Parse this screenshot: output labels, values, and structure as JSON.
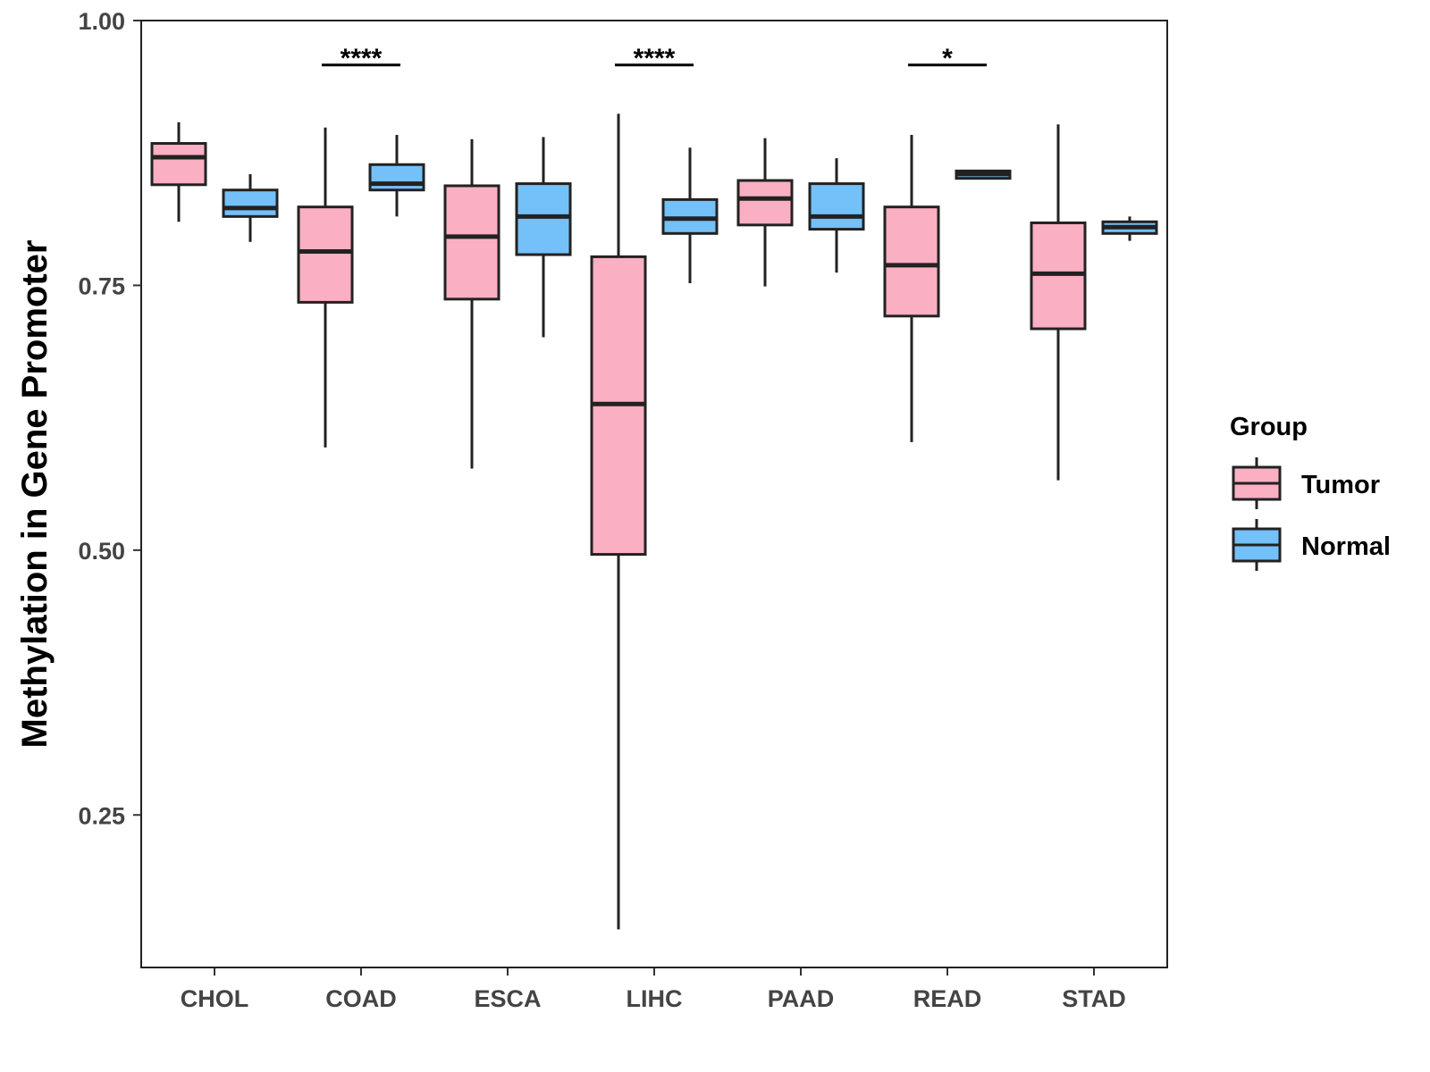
{
  "chart_data": {
    "type": "boxplot",
    "ylabel": "Methylation in Gene Promoter",
    "xlabel": "",
    "ylim": [
      0.106,
      1.0
    ],
    "yticks": [
      "0.25",
      "0.50",
      "0.75",
      "1.00"
    ],
    "categories": [
      "CHOL",
      "COAD",
      "ESCA",
      "LIHC",
      "PAAD",
      "READ",
      "STAD"
    ],
    "legend": {
      "title": "Group",
      "position": "right",
      "entries": [
        {
          "name": "Tumor",
          "color": "#FBAFC2"
        },
        {
          "name": "Normal",
          "color": "#74C0F9"
        }
      ]
    },
    "series": [
      {
        "name": "Tumor",
        "color": "#FBAFC2",
        "boxes": [
          {
            "whisker_low": 0.81,
            "q1": 0.845,
            "median": 0.871,
            "q3": 0.884,
            "whisker_high": 0.904
          },
          {
            "whisker_low": 0.597,
            "q1": 0.734,
            "median": 0.782,
            "q3": 0.824,
            "whisker_high": 0.899
          },
          {
            "whisker_low": 0.577,
            "q1": 0.737,
            "median": 0.796,
            "q3": 0.844,
            "whisker_high": 0.888
          },
          {
            "whisker_low": 0.142,
            "q1": 0.496,
            "median": 0.638,
            "q3": 0.777,
            "whisker_high": 0.912
          },
          {
            "whisker_low": 0.749,
            "q1": 0.807,
            "median": 0.832,
            "q3": 0.849,
            "whisker_high": 0.889
          },
          {
            "whisker_low": 0.602,
            "q1": 0.721,
            "median": 0.769,
            "q3": 0.824,
            "whisker_high": 0.892
          },
          {
            "whisker_low": 0.566,
            "q1": 0.709,
            "median": 0.761,
            "q3": 0.809,
            "whisker_high": 0.902
          }
        ]
      },
      {
        "name": "Normal",
        "color": "#74C0F9",
        "boxes": [
          {
            "whisker_low": 0.791,
            "q1": 0.815,
            "median": 0.823,
            "q3": 0.84,
            "whisker_high": 0.855
          },
          {
            "whisker_low": 0.815,
            "q1": 0.84,
            "median": 0.846,
            "q3": 0.864,
            "whisker_high": 0.892
          },
          {
            "whisker_low": 0.701,
            "q1": 0.779,
            "median": 0.815,
            "q3": 0.846,
            "whisker_high": 0.89
          },
          {
            "whisker_low": 0.752,
            "q1": 0.799,
            "median": 0.813,
            "q3": 0.831,
            "whisker_high": 0.88
          },
          {
            "whisker_low": 0.762,
            "q1": 0.803,
            "median": 0.815,
            "q3": 0.846,
            "whisker_high": 0.87
          },
          {
            "whisker_low": 0.851,
            "q1": 0.851,
            "median": 0.855,
            "q3": 0.858,
            "whisker_high": 0.858
          },
          {
            "whisker_low": 0.792,
            "q1": 0.799,
            "median": 0.805,
            "q3": 0.81,
            "whisker_high": 0.815
          }
        ]
      }
    ],
    "annotations": [
      {
        "category": "COAD",
        "label": "****",
        "y": 0.958
      },
      {
        "category": "LIHC",
        "label": "****",
        "y": 0.958
      },
      {
        "category": "READ",
        "label": "*",
        "y": 0.958
      }
    ]
  }
}
